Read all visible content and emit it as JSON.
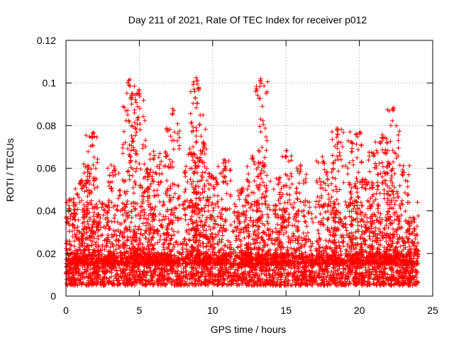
{
  "chart_data": {
    "type": "scatter",
    "title": "Day 211 of 2021, Rate Of TEC Index for receiver p012",
    "xlabel": "GPS time / hours",
    "ylabel": "ROTI / TECUs",
    "xlim": [
      0,
      25
    ],
    "ylim": [
      0,
      0.12
    ],
    "xticks": [
      0,
      5,
      10,
      15,
      20,
      25
    ],
    "xtick_labels": [
      "0",
      "5",
      "10",
      "15",
      "20",
      "25"
    ],
    "yticks": [
      0,
      0.02,
      0.04,
      0.06,
      0.08,
      0.1,
      0.12
    ],
    "ytick_labels": [
      "0",
      "0.02",
      "0.04",
      "0.06",
      "0.08",
      "0.1",
      "0.12"
    ],
    "grid": true,
    "marker": "+",
    "series": [
      {
        "name": "ROTI",
        "color": "#ff0000",
        "x_range": [
          0,
          24
        ],
        "baseline_range": [
          0.005,
          0.02
        ],
        "peaks": [
          {
            "x": 0.2,
            "y": 0.046
          },
          {
            "x": 1.0,
            "y": 0.055
          },
          {
            "x": 1.5,
            "y": 0.062
          },
          {
            "x": 1.8,
            "y": 0.077
          },
          {
            "x": 2.5,
            "y": 0.045
          },
          {
            "x": 3.3,
            "y": 0.062
          },
          {
            "x": 4.3,
            "y": 0.102
          },
          {
            "x": 4.5,
            "y": 0.096
          },
          {
            "x": 5.0,
            "y": 0.097
          },
          {
            "x": 5.5,
            "y": 0.06
          },
          {
            "x": 6.0,
            "y": 0.068
          },
          {
            "x": 6.8,
            "y": 0.068
          },
          {
            "x": 7.3,
            "y": 0.088
          },
          {
            "x": 8.5,
            "y": 0.07
          },
          {
            "x": 8.9,
            "y": 0.103
          },
          {
            "x": 9.1,
            "y": 0.099
          },
          {
            "x": 9.4,
            "y": 0.073
          },
          {
            "x": 10.0,
            "y": 0.058
          },
          {
            "x": 10.8,
            "y": 0.064
          },
          {
            "x": 12.0,
            "y": 0.052
          },
          {
            "x": 12.7,
            "y": 0.068
          },
          {
            "x": 13.3,
            "y": 0.102
          },
          {
            "x": 13.5,
            "y": 0.065
          },
          {
            "x": 14.5,
            "y": 0.056
          },
          {
            "x": 15.0,
            "y": 0.069
          },
          {
            "x": 16.0,
            "y": 0.062
          },
          {
            "x": 17.5,
            "y": 0.066
          },
          {
            "x": 18.2,
            "y": 0.063
          },
          {
            "x": 18.5,
            "y": 0.079
          },
          {
            "x": 19.5,
            "y": 0.073
          },
          {
            "x": 19.8,
            "y": 0.078
          },
          {
            "x": 20.5,
            "y": 0.055
          },
          {
            "x": 21.0,
            "y": 0.068
          },
          {
            "x": 21.5,
            "y": 0.076
          },
          {
            "x": 22.0,
            "y": 0.064
          },
          {
            "x": 22.3,
            "y": 0.09
          },
          {
            "x": 23.0,
            "y": 0.062
          },
          {
            "x": 23.7,
            "y": 0.038
          }
        ]
      }
    ]
  }
}
